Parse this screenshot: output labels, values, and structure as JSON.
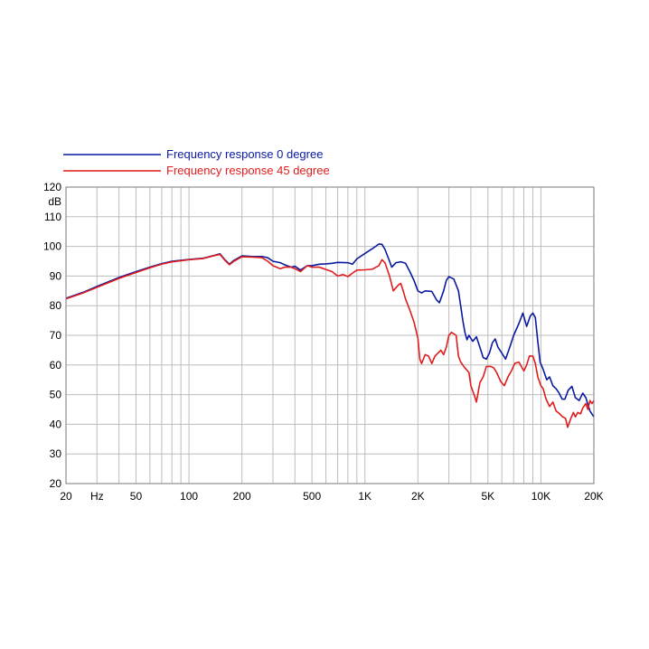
{
  "chart_data": {
    "type": "line",
    "x_scale": "log",
    "xlim": [
      20,
      20000
    ],
    "ylim": [
      20,
      120
    ],
    "ylabel": "dB",
    "grid": true,
    "legend_position": "top-left, above plot",
    "x_ticks": [
      {
        "value": 20,
        "label": "20"
      },
      {
        "value": 30,
        "label": "Hz"
      },
      {
        "value": 50,
        "label": "50"
      },
      {
        "value": 100,
        "label": "100"
      },
      {
        "value": 200,
        "label": "200"
      },
      {
        "value": 500,
        "label": "500"
      },
      {
        "value": 1000,
        "label": "1K"
      },
      {
        "value": 2000,
        "label": "2K"
      },
      {
        "value": 5000,
        "label": "5K"
      },
      {
        "value": 10000,
        "label": "10K"
      },
      {
        "value": 20000,
        "label": "20K"
      }
    ],
    "y_ticks": [
      "20",
      "30",
      "40",
      "50",
      "60",
      "70",
      "80",
      "90",
      "100",
      "110",
      "120"
    ],
    "series": [
      {
        "name": "Frequency response 0 degree",
        "color": "#0a1aa0",
        "points": [
          [
            20,
            82.5
          ],
          [
            25,
            84.5
          ],
          [
            30,
            86.5
          ],
          [
            40,
            89.5
          ],
          [
            50,
            91.5
          ],
          [
            60,
            93
          ],
          [
            70,
            94.2
          ],
          [
            80,
            95
          ],
          [
            100,
            95.6
          ],
          [
            120,
            96
          ],
          [
            140,
            97
          ],
          [
            150,
            97.5
          ],
          [
            160,
            95.5
          ],
          [
            170,
            94
          ],
          [
            180,
            95.3
          ],
          [
            200,
            96.8
          ],
          [
            230,
            96.6
          ],
          [
            260,
            96.6
          ],
          [
            280,
            96.2
          ],
          [
            300,
            95
          ],
          [
            330,
            94.5
          ],
          [
            350,
            93.8
          ],
          [
            380,
            93
          ],
          [
            400,
            93.3
          ],
          [
            430,
            92
          ],
          [
            470,
            93.5
          ],
          [
            500,
            93.5
          ],
          [
            550,
            94
          ],
          [
            600,
            94.1
          ],
          [
            650,
            94.3
          ],
          [
            700,
            94.6
          ],
          [
            800,
            94.5
          ],
          [
            850,
            94
          ],
          [
            900,
            95.8
          ],
          [
            1000,
            97.6
          ],
          [
            1100,
            99.2
          ],
          [
            1200,
            100.8
          ],
          [
            1250,
            100.7
          ],
          [
            1300,
            99
          ],
          [
            1380,
            95
          ],
          [
            1420,
            93
          ],
          [
            1500,
            94.5
          ],
          [
            1600,
            94.8
          ],
          [
            1700,
            94.3
          ],
          [
            1800,
            91.5
          ],
          [
            1900,
            88.5
          ],
          [
            2000,
            85
          ],
          [
            2100,
            84.3
          ],
          [
            2200,
            85
          ],
          [
            2400,
            84.8
          ],
          [
            2550,
            82
          ],
          [
            2650,
            81
          ],
          [
            2800,
            85
          ],
          [
            2900,
            88.5
          ],
          [
            3000,
            89.8
          ],
          [
            3200,
            89
          ],
          [
            3400,
            85
          ],
          [
            3500,
            80
          ],
          [
            3600,
            75
          ],
          [
            3700,
            71
          ],
          [
            3800,
            68.5
          ],
          [
            3900,
            70
          ],
          [
            4100,
            68
          ],
          [
            4300,
            69.5
          ],
          [
            4500,
            66
          ],
          [
            4700,
            62.5
          ],
          [
            4900,
            62
          ],
          [
            5100,
            64
          ],
          [
            5300,
            67.5
          ],
          [
            5500,
            68.8
          ],
          [
            5700,
            66
          ],
          [
            6000,
            64
          ],
          [
            6300,
            62
          ],
          [
            6700,
            66.5
          ],
          [
            7000,
            70
          ],
          [
            7500,
            74
          ],
          [
            7900,
            77.5
          ],
          [
            8300,
            73
          ],
          [
            8700,
            76.5
          ],
          [
            9000,
            77.5
          ],
          [
            9300,
            76
          ],
          [
            9600,
            68
          ],
          [
            9900,
            61
          ],
          [
            10300,
            58.5
          ],
          [
            10800,
            55
          ],
          [
            11200,
            56
          ],
          [
            11700,
            53
          ],
          [
            12200,
            52
          ],
          [
            12700,
            50.5
          ],
          [
            13200,
            48.5
          ],
          [
            13700,
            48.5
          ],
          [
            14300,
            51.5
          ],
          [
            15000,
            52.8
          ],
          [
            15700,
            49
          ],
          [
            16500,
            48
          ],
          [
            17300,
            50.5
          ],
          [
            18000,
            49
          ],
          [
            19000,
            44.5
          ],
          [
            20000,
            42.5
          ]
        ]
      },
      {
        "name": "Frequency response 45 degree",
        "color": "#e01c1c",
        "points": [
          [
            20,
            82.3
          ],
          [
            25,
            84.3
          ],
          [
            30,
            86.2
          ],
          [
            40,
            89.2
          ],
          [
            50,
            91.2
          ],
          [
            60,
            92.8
          ],
          [
            70,
            94
          ],
          [
            80,
            94.8
          ],
          [
            100,
            95.5
          ],
          [
            120,
            95.9
          ],
          [
            140,
            96.9
          ],
          [
            150,
            97.3
          ],
          [
            160,
            95.3
          ],
          [
            170,
            93.8
          ],
          [
            180,
            95
          ],
          [
            200,
            96.5
          ],
          [
            230,
            96.4
          ],
          [
            260,
            96.2
          ],
          [
            280,
            95
          ],
          [
            300,
            93.5
          ],
          [
            330,
            92.5
          ],
          [
            350,
            93
          ],
          [
            380,
            93
          ],
          [
            400,
            92.5
          ],
          [
            430,
            91.5
          ],
          [
            470,
            93.5
          ],
          [
            500,
            93
          ],
          [
            550,
            93
          ],
          [
            600,
            92.2
          ],
          [
            650,
            91.5
          ],
          [
            700,
            90
          ],
          [
            750,
            90.5
          ],
          [
            800,
            89.8
          ],
          [
            850,
            91
          ],
          [
            900,
            92
          ],
          [
            1000,
            92.1
          ],
          [
            1100,
            92.3
          ],
          [
            1200,
            93.5
          ],
          [
            1250,
            95.5
          ],
          [
            1300,
            94.5
          ],
          [
            1380,
            90
          ],
          [
            1450,
            85
          ],
          [
            1550,
            87
          ],
          [
            1600,
            87.5
          ],
          [
            1650,
            85
          ],
          [
            1700,
            82.3
          ],
          [
            1800,
            78.5
          ],
          [
            1900,
            74.5
          ],
          [
            2000,
            69
          ],
          [
            2050,
            62
          ],
          [
            2100,
            60.5
          ],
          [
            2200,
            63.5
          ],
          [
            2300,
            63
          ],
          [
            2400,
            60.5
          ],
          [
            2500,
            63
          ],
          [
            2700,
            65
          ],
          [
            2800,
            63.5
          ],
          [
            2900,
            66
          ],
          [
            3000,
            70
          ],
          [
            3100,
            71
          ],
          [
            3300,
            70
          ],
          [
            3400,
            63
          ],
          [
            3500,
            61
          ],
          [
            3700,
            59
          ],
          [
            3900,
            57.5
          ],
          [
            4000,
            53
          ],
          [
            4200,
            49.5
          ],
          [
            4300,
            47.5
          ],
          [
            4500,
            54
          ],
          [
            4700,
            56
          ],
          [
            4900,
            59.5
          ],
          [
            5200,
            59.5
          ],
          [
            5400,
            59
          ],
          [
            5600,
            57.5
          ],
          [
            5900,
            54.5
          ],
          [
            6200,
            53
          ],
          [
            6500,
            56
          ],
          [
            6800,
            58
          ],
          [
            7100,
            60.5
          ],
          [
            7500,
            61
          ],
          [
            8000,
            58
          ],
          [
            8300,
            60
          ],
          [
            8600,
            63
          ],
          [
            9000,
            63
          ],
          [
            9300,
            60.5
          ],
          [
            9600,
            56
          ],
          [
            10000,
            53
          ],
          [
            10300,
            52
          ],
          [
            10700,
            48.5
          ],
          [
            11200,
            46
          ],
          [
            11700,
            47.5
          ],
          [
            12200,
            44.5
          ],
          [
            12800,
            43.5
          ],
          [
            13300,
            42.5
          ],
          [
            13800,
            42
          ],
          [
            14200,
            39
          ],
          [
            14800,
            42
          ],
          [
            15300,
            44
          ],
          [
            15700,
            42.5
          ],
          [
            16200,
            44
          ],
          [
            16800,
            43.5
          ],
          [
            17300,
            45.5
          ],
          [
            18000,
            47
          ],
          [
            18500,
            45
          ],
          [
            19000,
            48
          ],
          [
            19500,
            47
          ],
          [
            20000,
            48
          ]
        ]
      }
    ]
  }
}
